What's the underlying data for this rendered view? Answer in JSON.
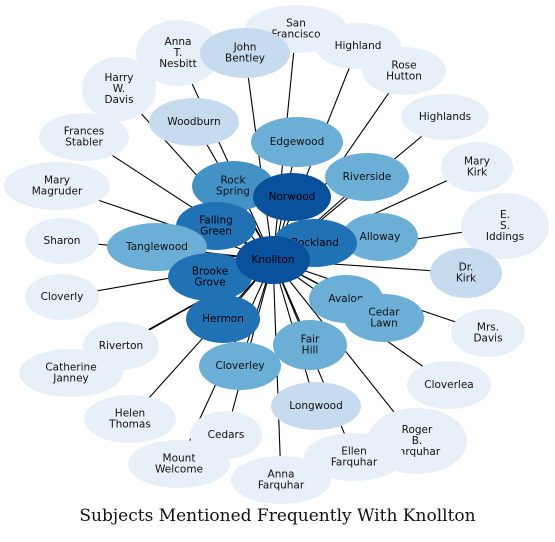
{
  "caption": "Subjects Mentioned Frequently With Knollton",
  "center": "Knollton",
  "palette": {
    "lightest": "#e7eff8",
    "light": "#c7dbef",
    "medium_light": "#9ecae1",
    "medium": "#6baed6",
    "medium_dark": "#4292c6",
    "dark": "#2171b5",
    "darkest": "#08519c",
    "edge": "#000000"
  },
  "nodes": [
    {
      "name": "Anna T. Nesbitt",
      "lines": [
        "Anna",
        "T.",
        "Nesbitt"
      ],
      "shade": "lightest"
    },
    {
      "name": "San Francisco",
      "lines": [
        "San",
        "Francisco"
      ],
      "shade": "lightest"
    },
    {
      "name": "John Bentley",
      "lines": [
        "John",
        "Bentley"
      ],
      "shade": "light"
    },
    {
      "name": "Highland",
      "lines": [
        "Highland"
      ],
      "shade": "lightest"
    },
    {
      "name": "Rose Hutton",
      "lines": [
        "Rose",
        "Hutton"
      ],
      "shade": "lightest"
    },
    {
      "name": "Harry W. Davis",
      "lines": [
        "Harry",
        "W.",
        "Davis"
      ],
      "shade": "lightest"
    },
    {
      "name": "Woodburn",
      "lines": [
        "Woodburn"
      ],
      "shade": "light"
    },
    {
      "name": "Highlands",
      "lines": [
        "Highlands"
      ],
      "shade": "lightest"
    },
    {
      "name": "Frances Stabler",
      "lines": [
        "Frances",
        "Stabler"
      ],
      "shade": "lightest"
    },
    {
      "name": "Edgewood",
      "lines": [
        "Edgewood"
      ],
      "shade": "medium"
    },
    {
      "name": "Mary Kirk",
      "lines": [
        "Mary",
        "Kirk"
      ],
      "shade": "lightest"
    },
    {
      "name": "Mary Magruder",
      "lines": [
        "Mary",
        "Magruder"
      ],
      "shade": "lightest"
    },
    {
      "name": "Riverside",
      "lines": [
        "Riverside"
      ],
      "shade": "medium"
    },
    {
      "name": "Rock Spring",
      "lines": [
        "Rock",
        "Spring"
      ],
      "shade": "medium_dark"
    },
    {
      "name": "Norwood",
      "lines": [
        "Norwood"
      ],
      "shade": "darkest"
    },
    {
      "name": "E. S. Iddings",
      "lines": [
        "E.",
        "S.",
        "Iddings"
      ],
      "shade": "lightest"
    },
    {
      "name": "Falling Green",
      "lines": [
        "Falling",
        "Green"
      ],
      "shade": "dark"
    },
    {
      "name": "Sharon",
      "lines": [
        "Sharon"
      ],
      "shade": "lightest"
    },
    {
      "name": "Tanglewood",
      "lines": [
        "Tanglewood"
      ],
      "shade": "medium"
    },
    {
      "name": "Alloway",
      "lines": [
        "Alloway"
      ],
      "shade": "medium"
    },
    {
      "name": "Rockland",
      "lines": [
        "Rockland"
      ],
      "shade": "dark"
    },
    {
      "name": "Brooke Grove",
      "lines": [
        "Brooke",
        "Grove"
      ],
      "shade": "dark"
    },
    {
      "name": "Dr. Kirk",
      "lines": [
        "Dr.",
        "Kirk"
      ],
      "shade": "light"
    },
    {
      "name": "Knollton",
      "lines": [
        "Knollton"
      ],
      "shade": "darkest"
    },
    {
      "name": "Cloverly",
      "lines": [
        "Cloverly"
      ],
      "shade": "lightest"
    },
    {
      "name": "Avalon",
      "lines": [
        "Avalon"
      ],
      "shade": "medium"
    },
    {
      "name": "Cedar Lawn",
      "lines": [
        "Cedar",
        "Lawn"
      ],
      "shade": "medium"
    },
    {
      "name": "Hermon",
      "lines": [
        "Hermon"
      ],
      "shade": "dark"
    },
    {
      "name": "Mrs. Davis",
      "lines": [
        "Mrs.",
        "Davis"
      ],
      "shade": "lightest"
    },
    {
      "name": "Fair Hill",
      "lines": [
        "Fair",
        "Hill"
      ],
      "shade": "medium"
    },
    {
      "name": "Riverton",
      "lines": [
        "Riverton"
      ],
      "shade": "lightest"
    },
    {
      "name": "Catherine Janney",
      "lines": [
        "Catherine",
        "Janney"
      ],
      "shade": "lightest"
    },
    {
      "name": "Cloverley",
      "lines": [
        "Cloverley"
      ],
      "shade": "medium"
    },
    {
      "name": "Cloverlea",
      "lines": [
        "Cloverlea"
      ],
      "shade": "lightest"
    },
    {
      "name": "Longwood",
      "lines": [
        "Longwood"
      ],
      "shade": "light"
    },
    {
      "name": "Helen Thomas",
      "lines": [
        "Helen",
        "Thomas"
      ],
      "shade": "lightest"
    },
    {
      "name": "Cedars",
      "lines": [
        "Cedars"
      ],
      "shade": "lightest"
    },
    {
      "name": "Roger B. Farquhar",
      "lines": [
        "Roger",
        "B.",
        "Farquhar"
      ],
      "shade": "lightest"
    },
    {
      "name": "Ellen Farquhar",
      "lines": [
        "Ellen",
        "Farquhar"
      ],
      "shade": "lightest"
    },
    {
      "name": "Mount Welcome",
      "lines": [
        "Mount",
        "Welcome"
      ],
      "shade": "lightest"
    },
    {
      "name": "Anna Farquhar",
      "lines": [
        "Anna",
        "Farquhar"
      ],
      "shade": "lightest"
    }
  ]
}
